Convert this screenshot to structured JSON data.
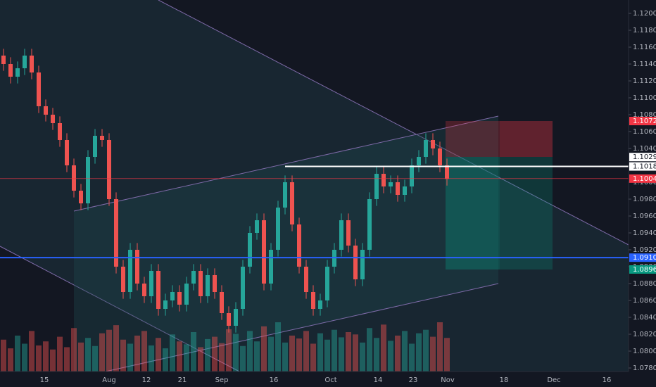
{
  "chart_data": {
    "type": "candlestick",
    "candles": [
      [
        1.115,
        1.1158,
        1.1132,
        1.114
      ],
      [
        1.114,
        1.1148,
        1.1117,
        1.1125
      ],
      [
        1.1125,
        1.1143,
        1.1117,
        1.1135
      ],
      [
        1.1135,
        1.1158,
        1.1127,
        1.115
      ],
      [
        1.115,
        1.1158,
        1.1122,
        1.113
      ],
      [
        1.113,
        1.1138,
        1.1082,
        1.109
      ],
      [
        1.109,
        1.1098,
        1.1072,
        1.108
      ],
      [
        1.108,
        1.1088,
        1.1062,
        1.107
      ],
      [
        1.107,
        1.1078,
        1.1042,
        1.105
      ],
      [
        1.105,
        1.1058,
        1.1012,
        1.102
      ],
      [
        1.102,
        1.1028,
        1.0982,
        1.099
      ],
      [
        1.099,
        1.0998,
        1.0967,
        1.0975
      ],
      [
        1.0975,
        1.1038,
        1.0967,
        1.103
      ],
      [
        1.103,
        1.1063,
        1.1022,
        1.1055
      ],
      [
        1.1055,
        1.1063,
        1.1042,
        1.105
      ],
      [
        1.105,
        1.1058,
        1.0972,
        1.098
      ],
      [
        1.098,
        1.0988,
        1.0892,
        1.09
      ],
      [
        1.09,
        1.0908,
        1.0862,
        1.087
      ],
      [
        1.087,
        1.0928,
        1.0862,
        1.092
      ],
      [
        1.092,
        1.0928,
        1.0872,
        1.088
      ],
      [
        1.088,
        1.0888,
        1.0857,
        1.0865
      ],
      [
        1.0865,
        1.0903,
        1.0857,
        1.0895
      ],
      [
        1.0895,
        1.0903,
        1.0842,
        1.085
      ],
      [
        1.085,
        1.0868,
        1.0842,
        1.086
      ],
      [
        1.086,
        1.0878,
        1.0852,
        1.087
      ],
      [
        1.087,
        1.0878,
        1.0847,
        1.0855
      ],
      [
        1.0855,
        1.0888,
        1.0847,
        1.088
      ],
      [
        1.088,
        1.0903,
        1.0872,
        1.0895
      ],
      [
        1.0895,
        1.0903,
        1.0857,
        1.0865
      ],
      [
        1.0865,
        1.0898,
        1.0857,
        1.089
      ],
      [
        1.089,
        1.0898,
        1.0862,
        1.087
      ],
      [
        1.087,
        1.0878,
        1.0837,
        1.0845
      ],
      [
        1.0845,
        1.0853,
        1.0822,
        1.083
      ],
      [
        1.083,
        1.0858,
        1.0822,
        1.085
      ],
      [
        1.085,
        1.0908,
        1.0842,
        1.09
      ],
      [
        1.09,
        1.0948,
        1.0892,
        1.094
      ],
      [
        1.094,
        1.0963,
        1.0932,
        1.0955
      ],
      [
        1.0955,
        1.0963,
        1.0872,
        1.088
      ],
      [
        1.088,
        1.0928,
        1.0872,
        1.092
      ],
      [
        1.092,
        1.0978,
        1.0912,
        1.097
      ],
      [
        1.097,
        1.1008,
        1.0962,
        1.1
      ],
      [
        1.1,
        1.1008,
        1.0942,
        1.095
      ],
      [
        1.095,
        1.0958,
        1.0892,
        1.09
      ],
      [
        1.09,
        1.0908,
        1.0862,
        1.087
      ],
      [
        1.087,
        1.0878,
        1.0842,
        1.085
      ],
      [
        1.085,
        1.0868,
        1.0842,
        1.086
      ],
      [
        1.086,
        1.0908,
        1.0852,
        1.09
      ],
      [
        1.09,
        1.0928,
        1.0892,
        1.092
      ],
      [
        1.092,
        1.0963,
        1.0912,
        1.0955
      ],
      [
        1.0955,
        1.0963,
        1.0917,
        1.0925
      ],
      [
        1.0925,
        1.0933,
        1.0877,
        1.0885
      ],
      [
        1.0885,
        1.0928,
        1.0877,
        1.092
      ],
      [
        1.092,
        1.0988,
        1.0912,
        1.098
      ],
      [
        1.098,
        1.1018,
        1.0972,
        1.101
      ],
      [
        1.101,
        1.1018,
        1.0987,
        1.0995
      ],
      [
        1.0995,
        1.1008,
        1.0987,
        1.1
      ],
      [
        1.1,
        1.1008,
        1.0977,
        1.0985
      ],
      [
        1.0985,
        1.1003,
        1.0977,
        1.0995
      ],
      [
        1.0995,
        1.1028,
        1.0987,
        1.102
      ],
      [
        1.102,
        1.1038,
        1.1012,
        1.103
      ],
      [
        1.103,
        1.1058,
        1.1022,
        1.105
      ],
      [
        1.105,
        1.1058,
        1.1032,
        1.104
      ],
      [
        1.104,
        1.1048,
        1.1012,
        1.102
      ],
      [
        1.102,
        1.1028,
        1.0996,
        1.1004
      ]
    ],
    "volume": [
      55,
      40,
      62,
      48,
      70,
      45,
      52,
      38,
      60,
      42,
      75,
      50,
      58,
      44,
      66,
      72,
      80,
      55,
      48,
      62,
      70,
      45,
      58,
      40,
      64,
      52,
      47,
      68,
      42,
      56,
      60,
      49,
      73,
      65,
      44,
      70,
      52,
      78,
      60,
      85,
      50,
      62,
      57,
      70,
      48,
      66,
      55,
      72,
      59,
      68,
      64,
      50,
      75,
      58,
      81,
      53,
      62,
      70,
      48,
      66,
      72,
      60,
      85,
      58
    ],
    "up_color": "#26a69a",
    "down_color": "#ef5350",
    "x_labels": [
      "15",
      "Aug",
      "12",
      "21",
      "Sep",
      "16",
      "Oct",
      "14",
      "23",
      "Nov",
      "18",
      "Dec",
      "16"
    ],
    "ylim": [
      1.078,
      1.12
    ],
    "yticks": [
      {
        "value": 1.078,
        "label": "1.07800"
      },
      {
        "value": 1.08,
        "label": "1.08000"
      },
      {
        "value": 1.082,
        "label": "1.08200"
      },
      {
        "value": 1.084,
        "label": "1.08400"
      },
      {
        "value": 1.086,
        "label": "1.08600"
      },
      {
        "value": 1.088,
        "label": "1.08800"
      },
      {
        "value": 1.09,
        "label": "1.09000"
      },
      {
        "value": 1.092,
        "label": "1.09200"
      },
      {
        "value": 1.094,
        "label": "1.09400"
      },
      {
        "value": 1.096,
        "label": "1.09600"
      },
      {
        "value": 1.098,
        "label": "1.09800"
      },
      {
        "value": 1.1,
        "label": "1.10000"
      },
      {
        "value": 1.102,
        "label": "1.10200"
      },
      {
        "value": 1.104,
        "label": "1.10400"
      },
      {
        "value": 1.106,
        "label": "1.10600"
      },
      {
        "value": 1.108,
        "label": "1.10800"
      },
      {
        "value": 1.11,
        "label": "1.11000"
      },
      {
        "value": 1.112,
        "label": "1.11200"
      },
      {
        "value": 1.114,
        "label": "1.11400"
      },
      {
        "value": 1.116,
        "label": "1.11600"
      },
      {
        "value": 1.118,
        "label": "1.11800"
      },
      {
        "value": 1.12,
        "label": "1.12000"
      }
    ],
    "price_markers": [
      {
        "price": 1.10725,
        "color": "#f23645"
      },
      {
        "price": 1.10298,
        "color": "#ffffff"
      },
      {
        "price": 1.10187,
        "color": "#ffffff"
      },
      {
        "price": 1.10043,
        "color": "#f23645"
      },
      {
        "price": 1.09107,
        "color": "#2962ff"
      },
      {
        "price": 1.08967,
        "color": "#089981"
      }
    ]
  }
}
